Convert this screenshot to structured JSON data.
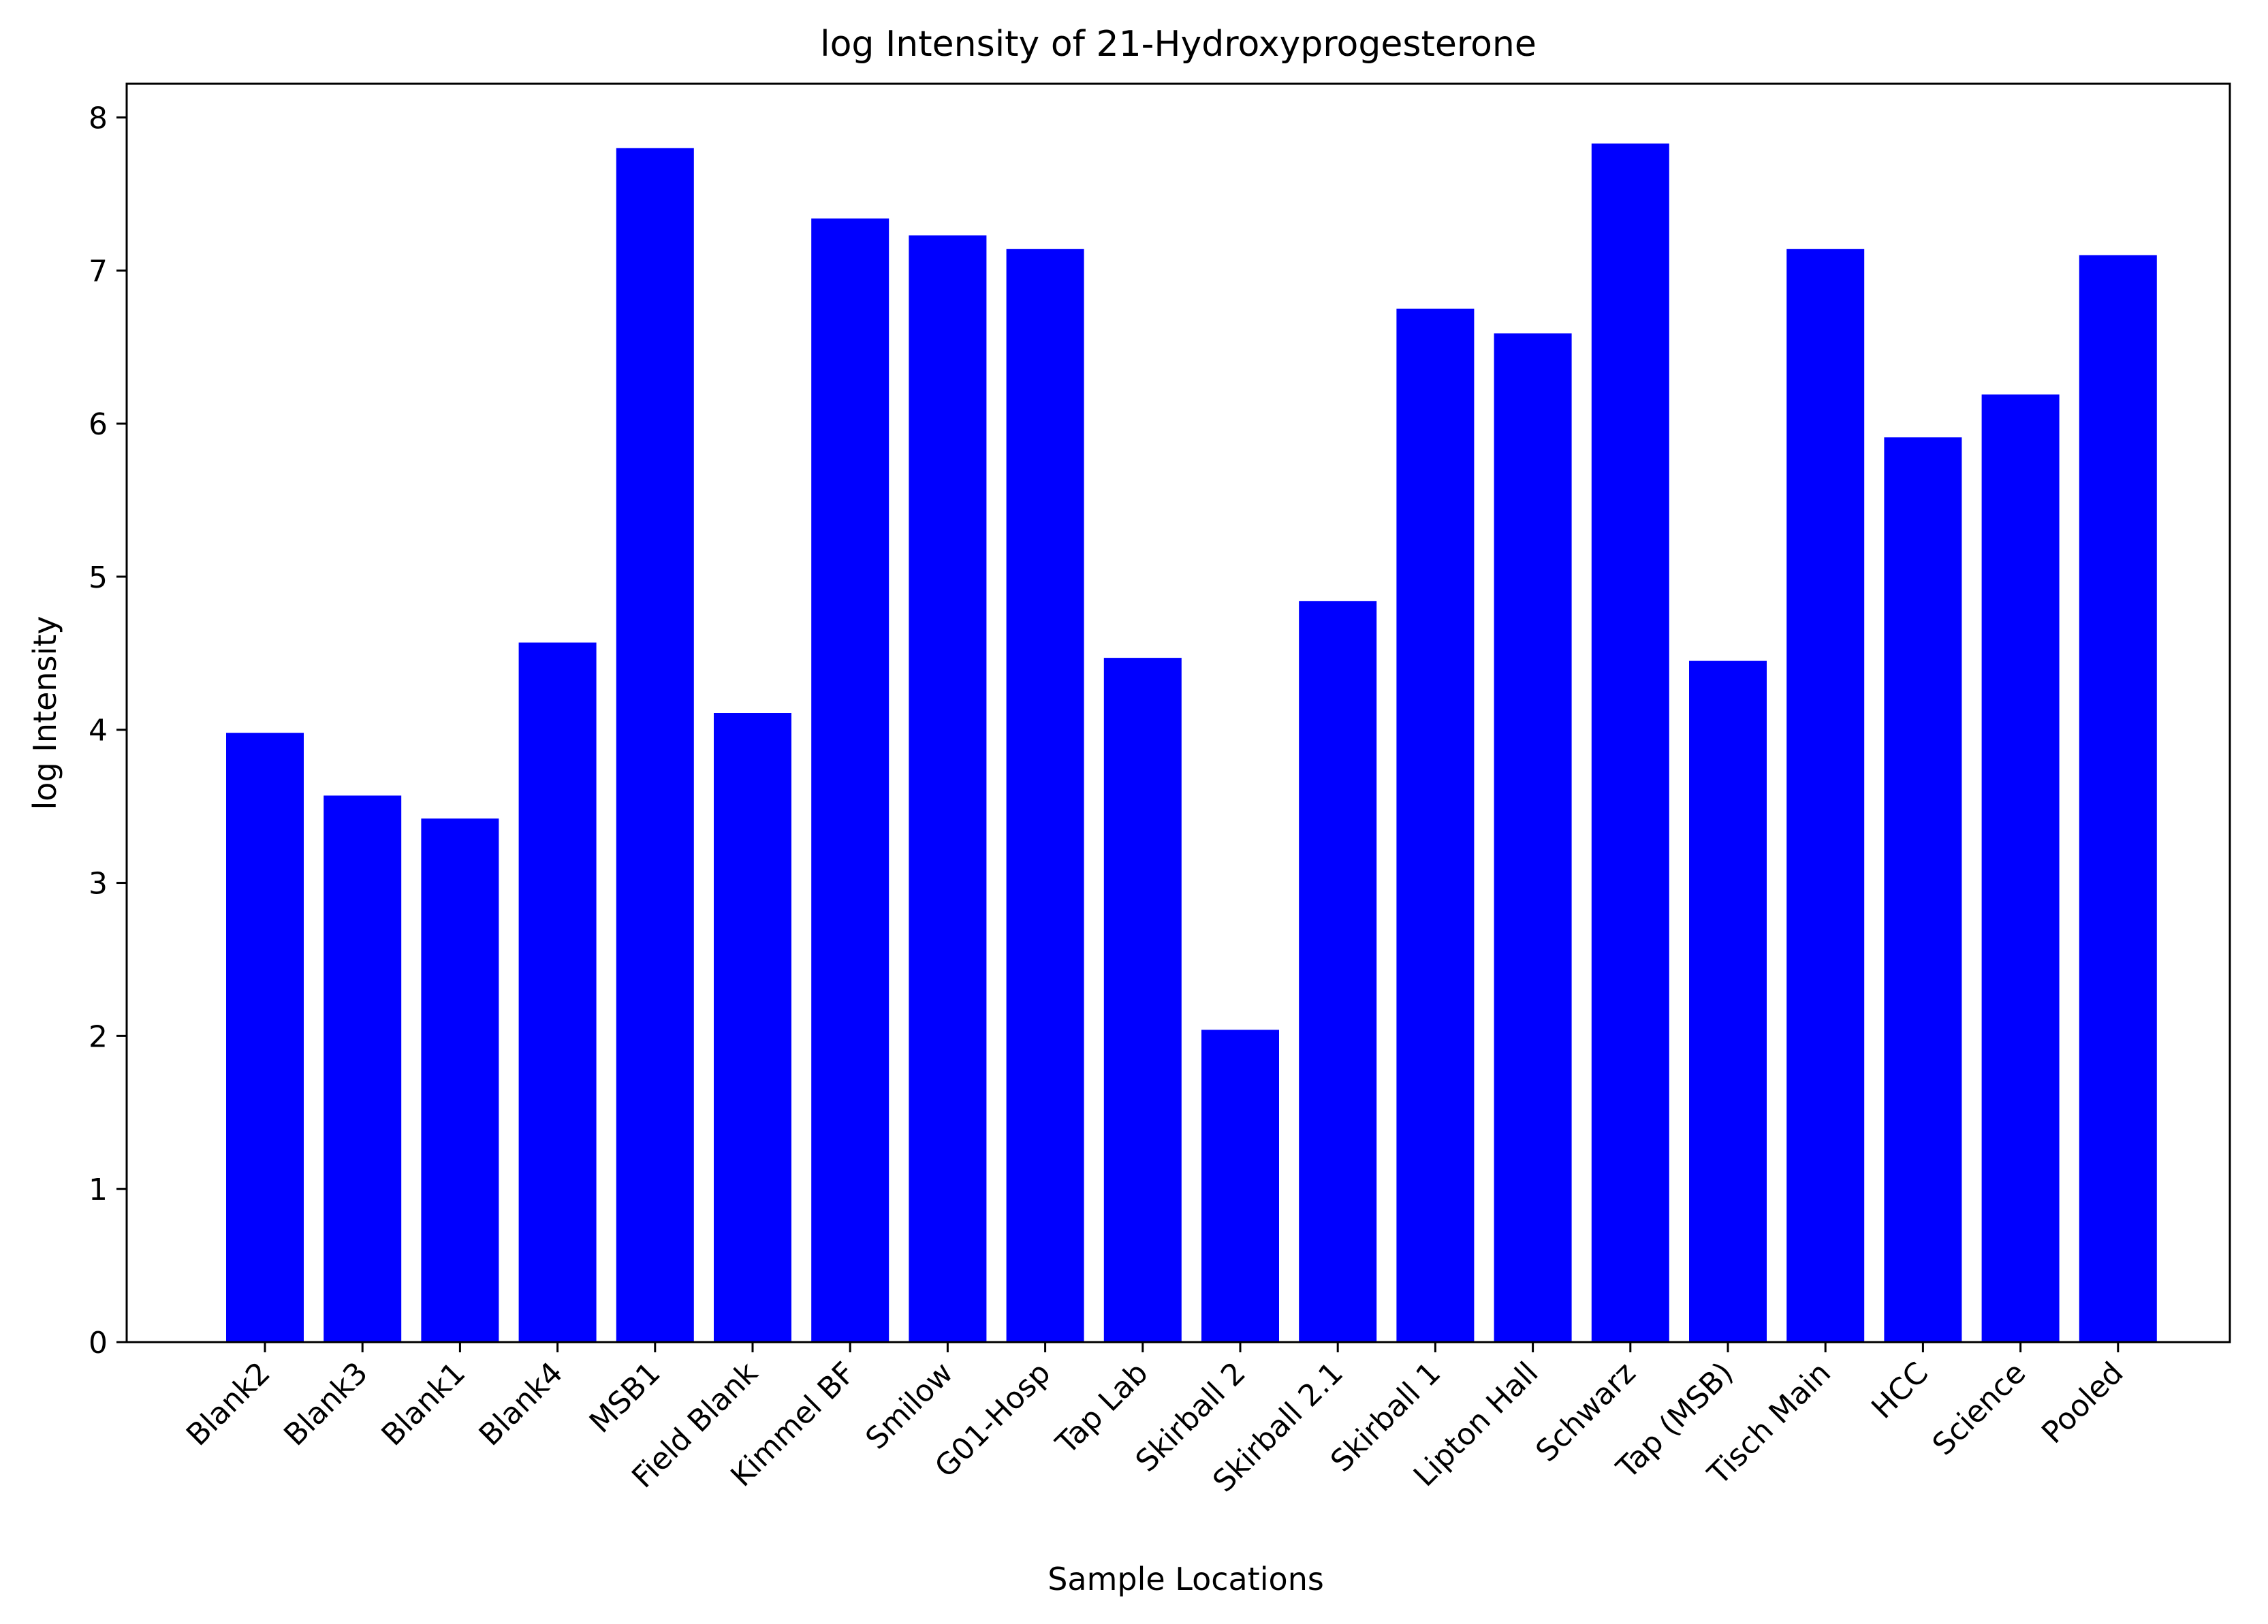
{
  "chart_data": {
    "type": "bar",
    "title": "log Intensity of 21-Hydroxyprogesterone",
    "xlabel": "Sample Locations",
    "ylabel": "log Intensity",
    "categories": [
      "Blank2",
      "Blank3",
      "Blank1",
      "Blank4",
      "MSB1",
      "Field Blank",
      "Kimmel BF",
      "Smilow",
      "G01-Hosp",
      "Tap Lab",
      "Skirball 2",
      "Skirball 2.1",
      "Skirball 1",
      "Lipton Hall",
      "Schwarz",
      "Tap (MSB)",
      "Tisch Main",
      "HCC",
      "Science",
      "Pooled"
    ],
    "values": [
      3.98,
      3.57,
      3.42,
      4.57,
      7.8,
      4.11,
      7.34,
      7.23,
      7.14,
      4.47,
      2.04,
      4.84,
      6.75,
      6.59,
      7.83,
      4.45,
      7.14,
      5.91,
      6.19,
      7.1
    ],
    "yticks": [
      "0",
      "1",
      "2",
      "3",
      "4",
      "5",
      "6",
      "7",
      "8"
    ],
    "ylim": [
      0,
      8.22
    ],
    "bar_color": "#0000ff",
    "grid": false,
    "legend": false
  }
}
